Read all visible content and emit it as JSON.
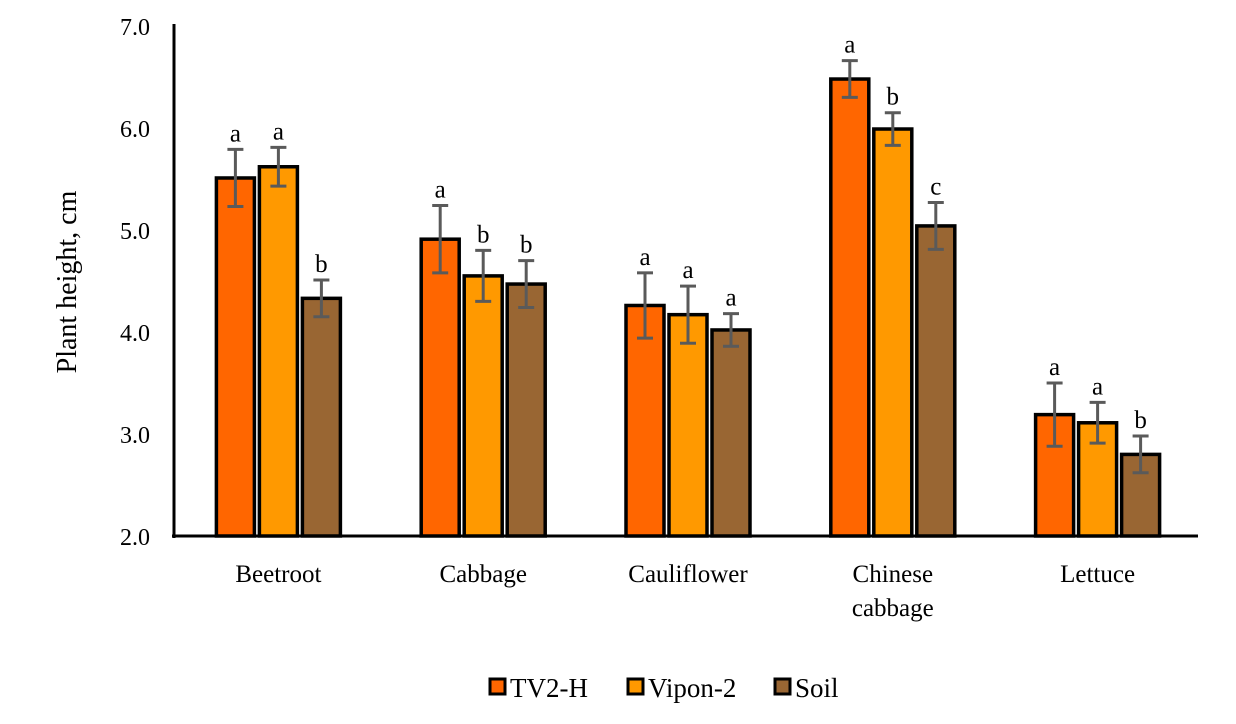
{
  "chart_data": {
    "type": "bar",
    "title": "",
    "xlabel": "",
    "ylabel": "Plant height, cm",
    "ylim": [
      2.0,
      7.0
    ],
    "yticks": [
      "2.0",
      "3.0",
      "4.0",
      "5.0",
      "6.0",
      "7.0"
    ],
    "grid": false,
    "legend_position": "bottom",
    "categories": [
      [
        "Beetroot"
      ],
      [
        "Cabbage"
      ],
      [
        "Cauliflower"
      ],
      [
        "Chinese",
        "cabbage"
      ],
      [
        "Lettuce"
      ]
    ],
    "series": [
      {
        "name": "TV2-H",
        "color": "#FF6600",
        "values": [
          5.51,
          4.91,
          4.26,
          6.48,
          3.19
        ],
        "errors": [
          0.28,
          0.33,
          0.32,
          0.18,
          0.31
        ],
        "letters": [
          "a",
          "a",
          "a",
          "a",
          "a"
        ]
      },
      {
        "name": "Vipon-2",
        "color": "#FF9900",
        "values": [
          5.62,
          4.55,
          4.17,
          5.99,
          3.11
        ],
        "errors": [
          0.19,
          0.25,
          0.28,
          0.16,
          0.2
        ],
        "letters": [
          "a",
          "b",
          "a",
          "b",
          "a"
        ]
      },
      {
        "name": "Soil",
        "color": "#996633",
        "values": [
          4.33,
          4.47,
          4.02,
          5.04,
          2.8
        ],
        "errors": [
          0.18,
          0.23,
          0.16,
          0.23,
          0.18
        ],
        "letters": [
          "b",
          "b",
          "a",
          "c",
          "b"
        ]
      }
    ]
  }
}
